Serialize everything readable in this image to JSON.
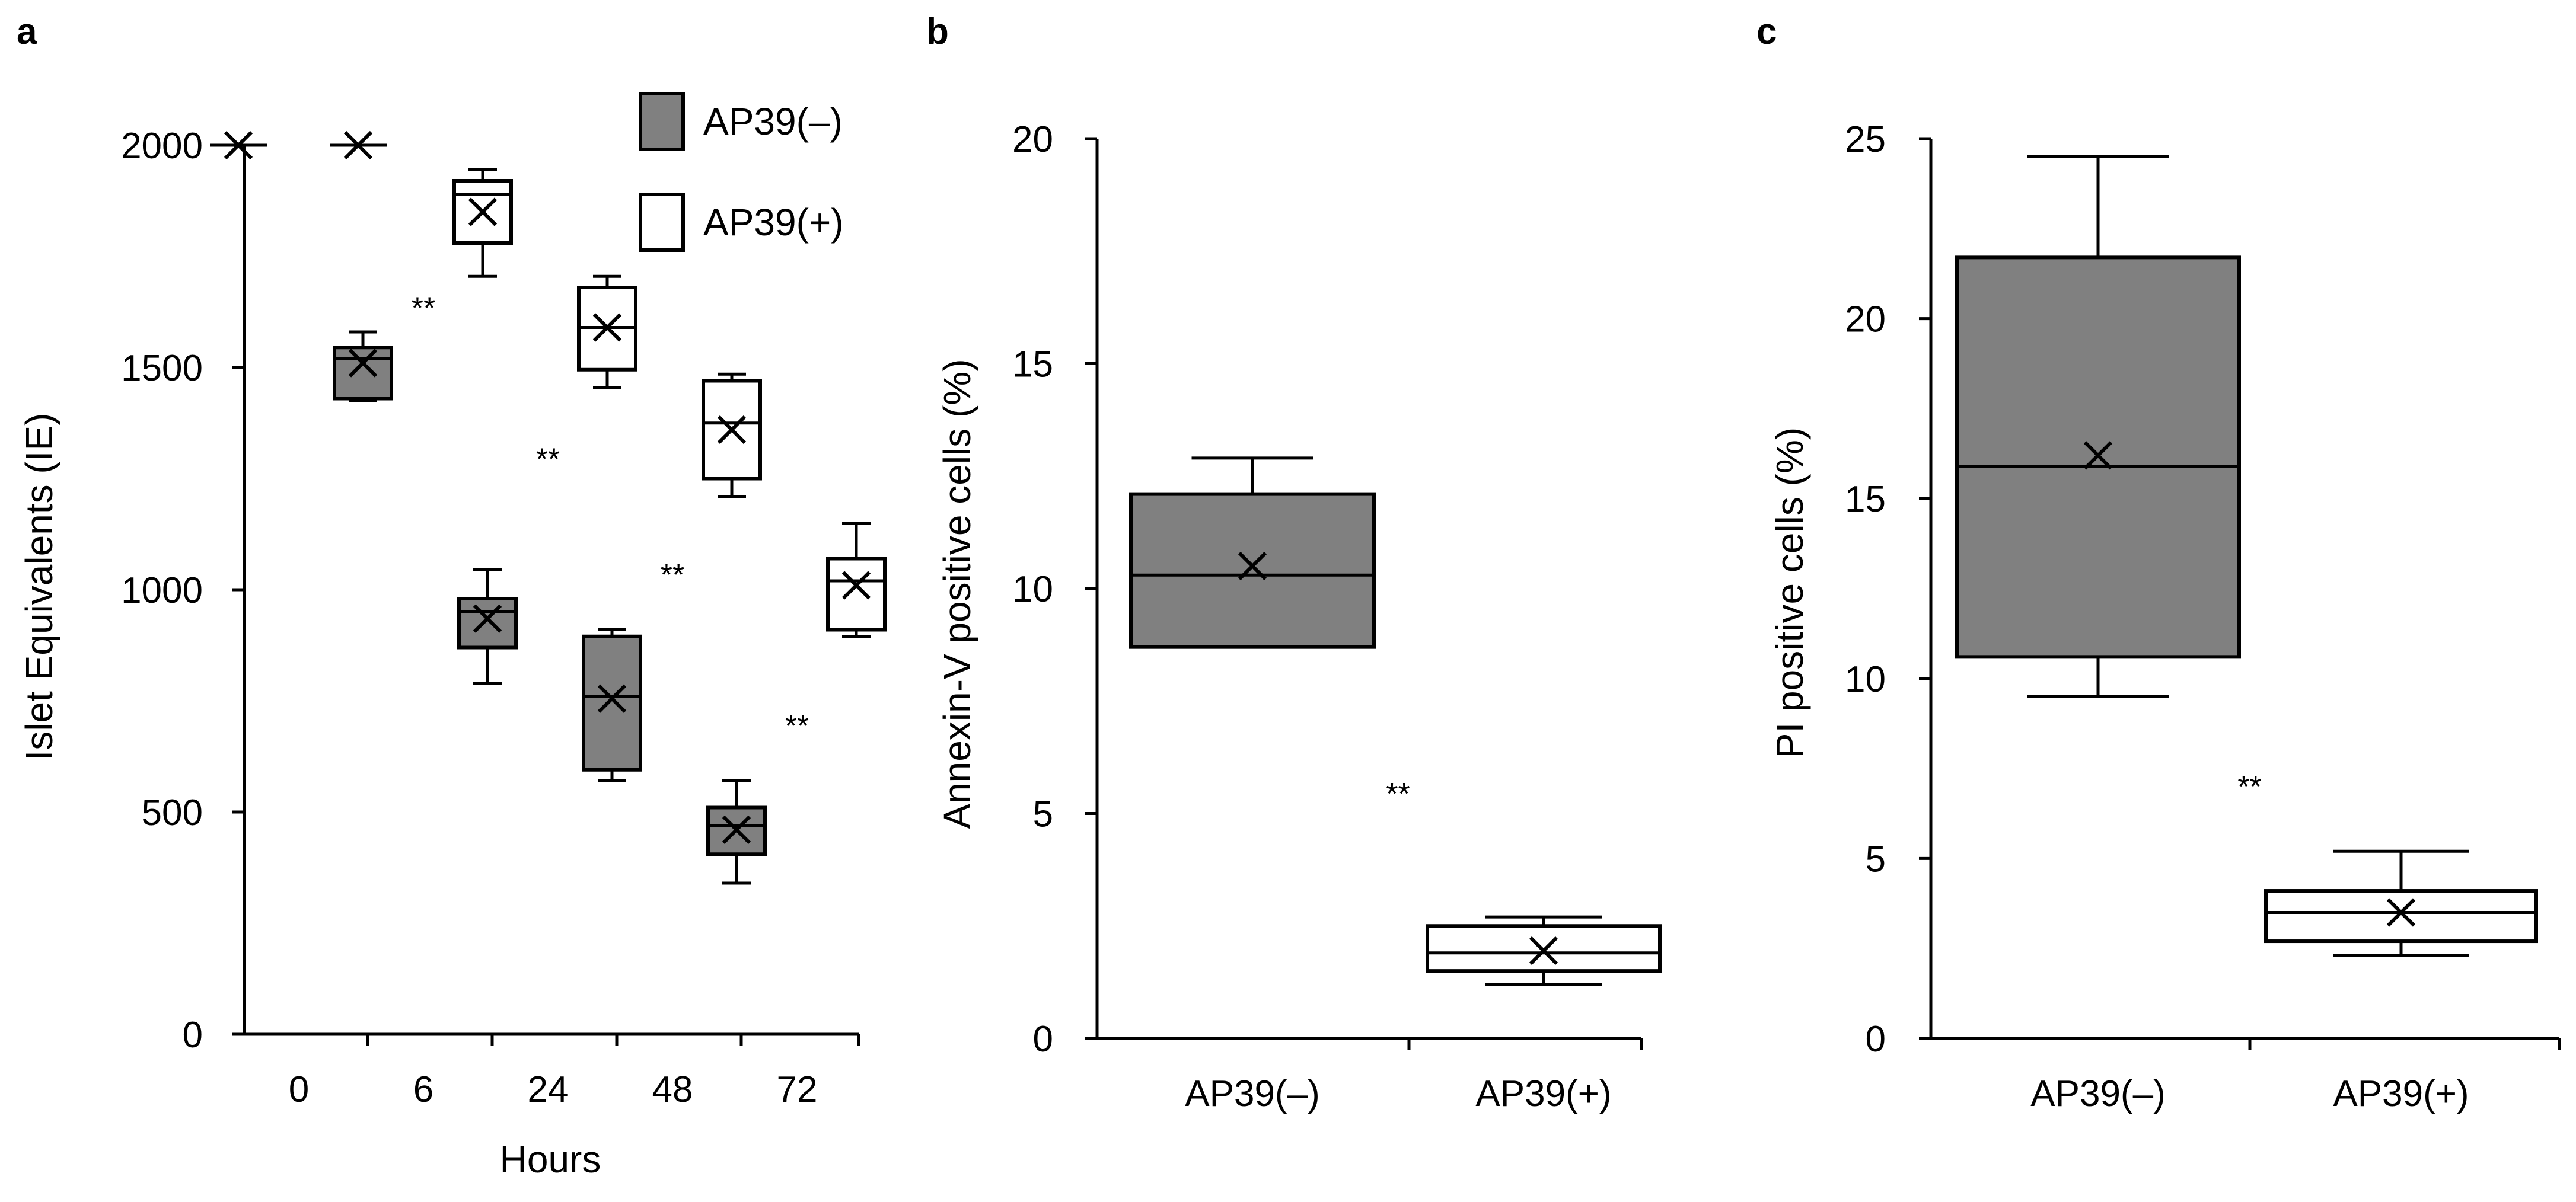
{
  "chart_data": [
    {
      "panel": "a",
      "type": "box",
      "xlabel": "Hours",
      "ylabel": "Islet Equivalents (IE)",
      "ylim": [
        0,
        2000
      ],
      "yticks": [
        0,
        500,
        1000,
        1500,
        2000
      ],
      "categories": [
        "0",
        "6",
        "24",
        "48",
        "72"
      ],
      "legend": {
        "position": "top-right"
      },
      "series": [
        {
          "name": "AP39(–)",
          "color": "#808080",
          "boxes": [
            {
              "category": "0",
              "min": 2000,
              "q1": 2000,
              "median": 2000,
              "q3": 2000,
              "max": 2000,
              "mean": 2000
            },
            {
              "category": "6",
              "min": 1425,
              "q1": 1430,
              "median": 1520,
              "q3": 1545,
              "max": 1580,
              "mean": 1510
            },
            {
              "category": "24",
              "min": 790,
              "q1": 870,
              "median": 950,
              "q3": 980,
              "max": 1045,
              "mean": 935
            },
            {
              "category": "48",
              "min": 570,
              "q1": 595,
              "median": 760,
              "q3": 895,
              "max": 910,
              "mean": 755
            },
            {
              "category": "72",
              "min": 340,
              "q1": 405,
              "median": 470,
              "q3": 510,
              "max": 570,
              "mean": 460
            }
          ]
        },
        {
          "name": "AP39(+)",
          "color": "#ffffff",
          "boxes": [
            {
              "category": "0",
              "min": 2000,
              "q1": 2000,
              "median": 2000,
              "q3": 2000,
              "max": 2000,
              "mean": 2000
            },
            {
              "category": "6",
              "min": 1705,
              "q1": 1780,
              "median": 1890,
              "q3": 1920,
              "max": 1945,
              "mean": 1850
            },
            {
              "category": "24",
              "min": 1455,
              "q1": 1495,
              "median": 1590,
              "q3": 1680,
              "max": 1705,
              "mean": 1590
            },
            {
              "category": "48",
              "min": 1210,
              "q1": 1250,
              "median": 1375,
              "q3": 1470,
              "max": 1485,
              "mean": 1360
            },
            {
              "category": "72",
              "min": 895,
              "q1": 910,
              "median": 1020,
              "q3": 1070,
              "max": 1150,
              "mean": 1010
            }
          ]
        }
      ],
      "annotations": [
        {
          "text": "**",
          "category": "6",
          "y": 1650
        },
        {
          "text": "**",
          "category": "24",
          "y": 1310
        },
        {
          "text": "**",
          "category": "48",
          "y": 1050
        },
        {
          "text": "**",
          "category": "72",
          "y": 710
        }
      ]
    },
    {
      "panel": "b",
      "type": "box",
      "xlabel": "",
      "ylabel": "Annexin-V positive cells  (%)",
      "ylim": [
        0,
        20
      ],
      "yticks": [
        0,
        5,
        10,
        15,
        20
      ],
      "categories": [
        "AP39(–)",
        "AP39(+)"
      ],
      "boxes": [
        {
          "category": "AP39(–)",
          "color": "#808080",
          "min": 8.7,
          "q1": 8.7,
          "median": 10.3,
          "q3": 12.1,
          "max": 12.9,
          "mean": 10.5
        },
        {
          "category": "AP39(+)",
          "color": "#ffffff",
          "min": 1.2,
          "q1": 1.5,
          "median": 1.9,
          "q3": 2.5,
          "max": 2.7,
          "mean": 1.95
        }
      ],
      "annotations": [
        {
          "text": "**",
          "between": [
            "AP39(–)",
            "AP39(+)"
          ],
          "y": 5.6
        }
      ]
    },
    {
      "panel": "c",
      "type": "box",
      "xlabel": "",
      "ylabel": "PI positive cells  (%)",
      "ylim": [
        0,
        25
      ],
      "yticks": [
        0,
        5,
        10,
        15,
        20,
        25
      ],
      "categories": [
        "AP39(–)",
        "AP39(+)"
      ],
      "boxes": [
        {
          "category": "AP39(–)",
          "color": "#808080",
          "min": 9.5,
          "q1": 10.6,
          "median": 15.9,
          "q3": 21.7,
          "max": 24.5,
          "mean": 16.2
        },
        {
          "category": "AP39(+)",
          "color": "#ffffff",
          "min": 2.3,
          "q1": 2.7,
          "median": 3.5,
          "q3": 4.1,
          "max": 5.2,
          "mean": 3.5
        }
      ],
      "annotations": [
        {
          "text": "**",
          "between": [
            "AP39(–)",
            "AP39(+)"
          ],
          "y": 7.2
        }
      ]
    }
  ]
}
